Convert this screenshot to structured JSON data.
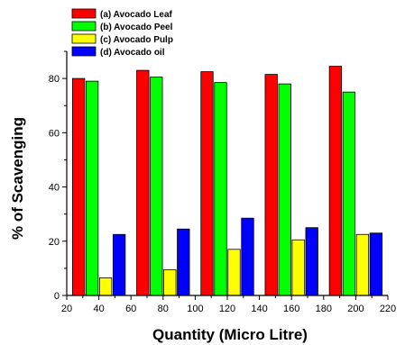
{
  "chart_data": {
    "type": "bar",
    "title": "",
    "xlabel": "Quantity (Micro Litre)",
    "ylabel": "% of Scavenging",
    "categories": [
      "40",
      "80",
      "120",
      "160",
      "200"
    ],
    "x": [
      40,
      80,
      120,
      160,
      200
    ],
    "xlim": [
      20,
      220
    ],
    "xticks": [
      "20",
      "40",
      "60",
      "80",
      "100",
      "120",
      "140",
      "160",
      "180",
      "200",
      "220"
    ],
    "ylim": [
      0,
      90
    ],
    "yticks": [
      "0",
      "20",
      "40",
      "60",
      "80"
    ],
    "grid": false,
    "legend_position": "top-left",
    "series": [
      {
        "name": "(a) Avocado Leaf",
        "color": "#ff0000",
        "values": [
          80,
          83,
          82.5,
          81.5,
          84.5
        ]
      },
      {
        "name": "(b) Avocado Peel",
        "color": "#00ff00",
        "values": [
          79,
          80.5,
          78.5,
          78,
          75
        ]
      },
      {
        "name": "(c) Avocado Pulp",
        "color": "#ffff00",
        "values": [
          6.5,
          9.5,
          17,
          20.5,
          22.5
        ]
      },
      {
        "name": "(d) Avocado oil",
        "color": "#0000ff",
        "values": [
          22.5,
          24.5,
          28.5,
          25,
          23
        ]
      }
    ]
  }
}
